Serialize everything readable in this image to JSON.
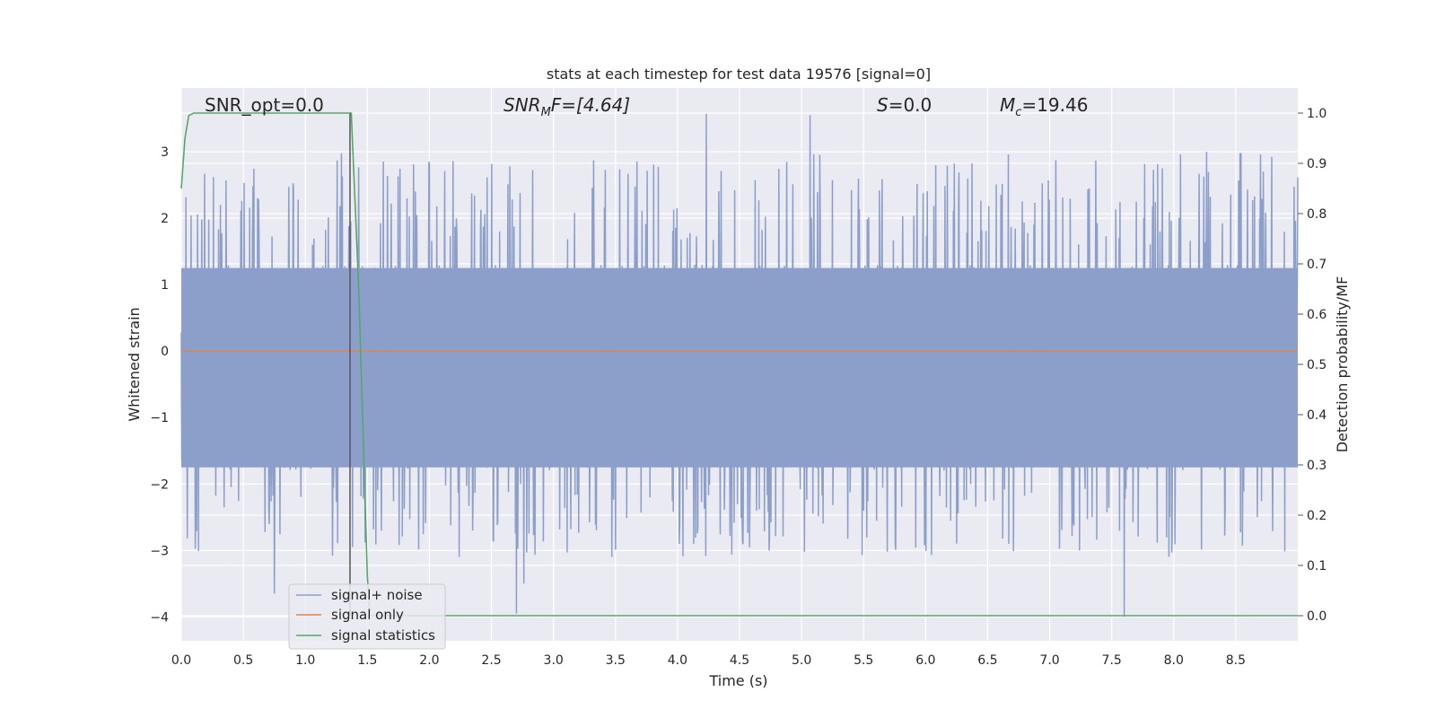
{
  "chart_data": {
    "type": "line",
    "title": "stats at each timestep for test data 19576 [signal=0]",
    "xlabel": "Time (s)",
    "ylabel_left": "Whitened strain",
    "ylabel_right": "Detection probability/MF",
    "xlim": [
      0.0,
      9.0
    ],
    "ylim_left": [
      -4.36,
      3.96
    ],
    "ylim_right": [
      -0.05,
      1.05
    ],
    "xticks": [
      "0.0",
      "0.5",
      "1.0",
      "1.5",
      "2.0",
      "2.5",
      "3.0",
      "3.5",
      "4.0",
      "4.5",
      "5.0",
      "5.5",
      "6.0",
      "6.5",
      "7.0",
      "7.5",
      "8.0",
      "8.5"
    ],
    "yticks_left": [
      "3",
      "2",
      "1",
      "0",
      "−1",
      "−2",
      "−3",
      "−4"
    ],
    "yticks_right": [
      "1.0",
      "0.9",
      "0.8",
      "0.7",
      "0.6",
      "0.5",
      "0.4",
      "0.3",
      "0.2",
      "0.1",
      "0.0"
    ],
    "grid": true,
    "legend_position": "lower-left",
    "annotations": {
      "snr_opt": "SNR_opt=0.0",
      "snr_mf_symbol": "SNR",
      "snr_mf_sub": "M",
      "snr_mf_rest": "F=[4.64]",
      "s_symbol": "S",
      "s_rest": "=0.0",
      "mc_symbol": "M",
      "mc_sub": "c",
      "mc_rest": "=19.46"
    },
    "vertical_marker_x": 1.36,
    "series": [
      {
        "name": "signal+ noise",
        "axis": "left",
        "color": "#8c9fca",
        "description_values": {
          "samples": 2400,
          "typical_range": [
            -1.8,
            1.3
          ],
          "extremes": [
            {
              "x": 2.7,
              "y": -3.95
            },
            {
              "x": 7.6,
              "y": -4.0
            },
            {
              "x": 4.23,
              "y": 3.57
            },
            {
              "x": 5.07,
              "y": 3.55
            },
            {
              "x": 0.75,
              "y": -3.65
            },
            {
              "x": 1.38,
              "y": -2.95
            },
            {
              "x": 2.76,
              "y": -3.5
            }
          ]
        }
      },
      {
        "name": "signal only",
        "axis": "left",
        "color": "#dd8452",
        "x": [
          0.0,
          9.0
        ],
        "y": [
          0.0,
          0.0
        ]
      },
      {
        "name": "signal statistics",
        "axis": "right",
        "color": "#55a868",
        "x": [
          0.0,
          0.03,
          0.06,
          0.1,
          1.3,
          1.37,
          1.43,
          1.5,
          1.52,
          9.0
        ],
        "y": [
          0.85,
          0.95,
          0.995,
          1.0,
          1.0,
          1.0,
          0.65,
          0.08,
          0.0,
          0.0
        ]
      }
    ]
  }
}
